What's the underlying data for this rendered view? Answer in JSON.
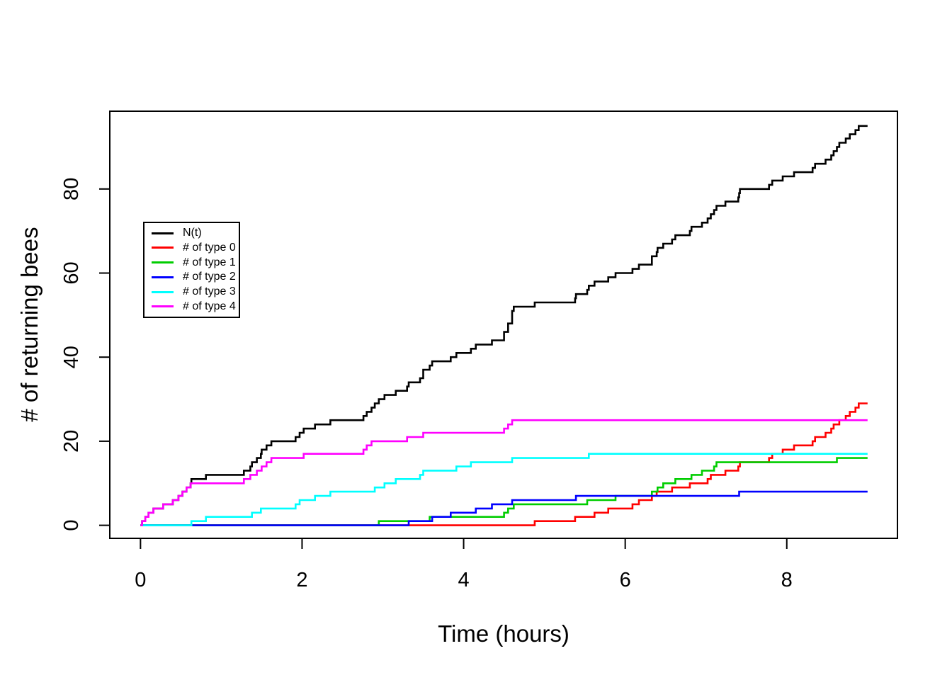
{
  "chart_data": {
    "type": "line",
    "subtype": "step-counting-process",
    "title": "",
    "xlabel": "Time (hours)",
    "ylabel": "# of returning bees",
    "grid": false,
    "background": "#ffffff",
    "axis_color": "#000000",
    "xlim": [
      -0.38,
      9.37
    ],
    "ylim": [
      -3.1,
      98.5
    ],
    "xticks": {
      "values": [
        0,
        2,
        4,
        6,
        8
      ],
      "labels": [
        "0",
        "2",
        "4",
        "6",
        "8"
      ]
    },
    "yticks": {
      "values": [
        0,
        20,
        40,
        60,
        80
      ],
      "labels": [
        "0",
        "20",
        "40",
        "60",
        "80"
      ]
    },
    "t_start": 0,
    "t_end": 9,
    "legend_position": "upper-left-inset",
    "series": [
      {
        "name": "N(t)",
        "color": "#000000",
        "start_value": 0,
        "final_value": 95,
        "jump_times": [
          0.02,
          0.06,
          0.1,
          0.16,
          0.28,
          0.4,
          0.47,
          0.52,
          0.57,
          0.62,
          0.63,
          0.81,
          1.28,
          1.36,
          1.38,
          1.44,
          1.49,
          1.5,
          1.56,
          1.62,
          1.92,
          1.97,
          2.02,
          2.16,
          2.35,
          2.76,
          2.8,
          2.86,
          2.9,
          2.95,
          3.02,
          3.16,
          3.3,
          3.32,
          3.46,
          3.5,
          3.5,
          3.58,
          3.61,
          3.84,
          3.91,
          4.09,
          4.15,
          4.35,
          4.5,
          4.5,
          4.55,
          4.55,
          4.6,
          4.6,
          4.6,
          4.62,
          4.88,
          5.38,
          5.39,
          5.53,
          5.55,
          5.62,
          5.79,
          5.88,
          6.09,
          6.17,
          6.33,
          6.33,
          6.39,
          6.4,
          6.47,
          6.58,
          6.62,
          6.8,
          6.82,
          6.95,
          7.02,
          7.06,
          7.1,
          7.13,
          7.24,
          7.4,
          7.41,
          7.42,
          7.78,
          7.82,
          7.95,
          8.09,
          8.32,
          8.35,
          8.48,
          8.55,
          8.58,
          8.62,
          8.65,
          8.73,
          8.78,
          8.85,
          8.89
        ]
      },
      {
        "name": "# of type 0",
        "color": "#FF0000",
        "start_value": 0,
        "final_value": 29,
        "jump_times": [
          4.88,
          5.38,
          5.62,
          5.79,
          6.09,
          6.17,
          6.33,
          6.39,
          6.58,
          6.8,
          7.02,
          7.06,
          7.24,
          7.4,
          7.42,
          7.78,
          7.82,
          7.95,
          8.09,
          8.32,
          8.35,
          8.48,
          8.55,
          8.58,
          8.65,
          8.73,
          8.78,
          8.85,
          8.89
        ]
      },
      {
        "name": "# of type 1",
        "color": "#00CD00",
        "start_value": 0,
        "final_value": 16,
        "jump_times": [
          2.95,
          3.58,
          4.5,
          4.55,
          4.62,
          5.53,
          5.88,
          6.33,
          6.4,
          6.47,
          6.62,
          6.82,
          6.95,
          7.1,
          7.13,
          8.62
        ]
      },
      {
        "name": "# of type 2",
        "color": "#0000FF",
        "start_value": 0,
        "final_value": 8,
        "jump_times": [
          3.32,
          3.61,
          3.84,
          4.15,
          4.35,
          4.6,
          5.39,
          7.41
        ]
      },
      {
        "name": "# of type 3",
        "color": "#00FFFF",
        "start_value": 0,
        "final_value": 17,
        "jump_times": [
          0.63,
          0.81,
          1.38,
          1.49,
          1.92,
          1.97,
          2.16,
          2.35,
          2.9,
          3.02,
          3.16,
          3.46,
          3.5,
          3.91,
          4.09,
          4.6,
          5.55
        ]
      },
      {
        "name": "# of type 4",
        "color": "#FF00FF",
        "start_value": 0,
        "final_value": 25,
        "jump_times": [
          0.02,
          0.06,
          0.1,
          0.16,
          0.28,
          0.4,
          0.47,
          0.52,
          0.57,
          0.62,
          1.28,
          1.36,
          1.44,
          1.5,
          1.56,
          1.62,
          2.02,
          2.76,
          2.8,
          2.86,
          3.3,
          3.5,
          4.5,
          4.55,
          4.6
        ]
      }
    ]
  }
}
